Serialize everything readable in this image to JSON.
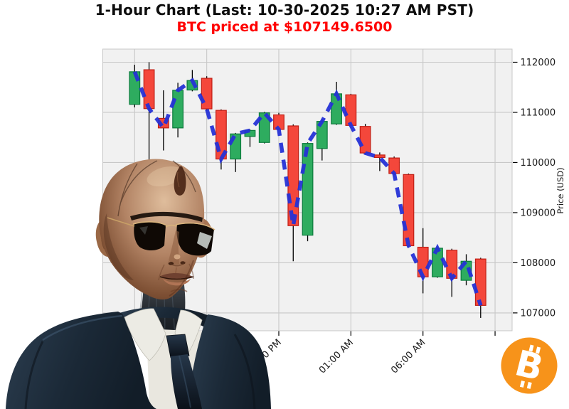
{
  "header": {
    "title": "1-Hour Chart (Last: 10-30-2025 10:27 AM PST)",
    "subtitle": "BTC priced at $107149.6500",
    "title_color": "#0d0d0d",
    "subtitle_color": "#ff0000"
  },
  "chart_data": {
    "type": "candlestick",
    "title": "1-Hour Chart (Last: 10-30-2025 10:27 AM PST)",
    "subtitle": "BTC priced at $107149.6500",
    "symbol": "BTC",
    "interval": "1-hour",
    "last_price": 107149.65,
    "ylabel": "Price (USD)",
    "ylim": [
      106640,
      112260
    ],
    "y_ticks": [
      107000,
      108000,
      109000,
      110000,
      111000,
      112000
    ],
    "x_tick_labels": [
      {
        "candle_index": 10,
        "label": "08:00 PM"
      },
      {
        "candle_index": 15,
        "label": "01:00 AM"
      },
      {
        "candle_index": 20,
        "label": "06:00 AM"
      }
    ],
    "x_grid_candle_indices": [
      0,
      5,
      10,
      15,
      20,
      25
    ],
    "grid": true,
    "plot_bg": "#f1f1f1",
    "overlay_line": {
      "name": "close-price-line",
      "style": "dashed",
      "color": "#2531d6",
      "values_from": "close"
    },
    "ohlc_order": [
      "open",
      "high",
      "low",
      "close"
    ],
    "candles": [
      [
        111160,
        111950,
        111100,
        111810
      ],
      [
        111850,
        112000,
        109980,
        111075
      ],
      [
        110880,
        111440,
        110240,
        110690
      ],
      [
        110690,
        111590,
        110500,
        111440
      ],
      [
        111446,
        111846,
        111420,
        111635
      ],
      [
        111680,
        111720,
        111030,
        111070
      ],
      [
        111040,
        111060,
        109860,
        110070
      ],
      [
        110070,
        110590,
        109810,
        110570
      ],
      [
        110520,
        110660,
        110310,
        110640
      ],
      [
        110400,
        111010,
        110380,
        110990
      ],
      [
        110950,
        110990,
        110650,
        110660
      ],
      [
        110730,
        110760,
        108030,
        108740
      ],
      [
        108550,
        110400,
        108430,
        110380
      ],
      [
        110280,
        110870,
        110040,
        110820
      ],
      [
        110770,
        111610,
        110750,
        111370
      ],
      [
        111350,
        111370,
        110720,
        110740
      ],
      [
        110720,
        110770,
        110160,
        110190
      ],
      [
        110150,
        110200,
        109830,
        110100
      ],
      [
        110090,
        110120,
        109750,
        109780
      ],
      [
        109760,
        109780,
        108300,
        108340
      ],
      [
        108310,
        108690,
        107390,
        107720
      ],
      [
        107720,
        108310,
        107700,
        108290
      ],
      [
        108250,
        108280,
        107320,
        107690
      ],
      [
        107650,
        108170,
        107550,
        108030
      ],
      [
        108075,
        108100,
        106900,
        107149.65
      ]
    ]
  },
  "colors": {
    "up_fill": "#2eac5f",
    "up_border": "#0b7b3c",
    "down_fill": "#f4473b",
    "down_border": "#c01f15",
    "wick": "#000000",
    "grid": "#c8c8c8",
    "tick_text": "#1a1a1a",
    "bitcoin_orange": "#f7931a"
  },
  "decorations": {
    "bitcoin_logo": {
      "letter": "B",
      "color": "#f7931a"
    },
    "figure_alt": "bald android agent wearing aviator sunglasses and a dark suit"
  }
}
